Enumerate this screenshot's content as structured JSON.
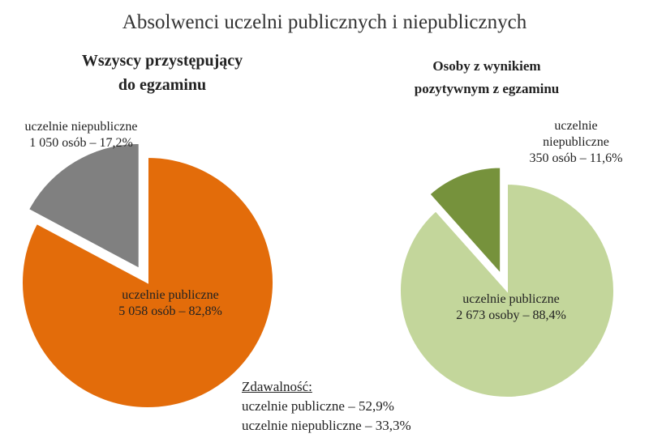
{
  "title": "Absolwenci uczelni publicznych i niepublicznych",
  "colors": {
    "public_all": "#E36C0A",
    "nonpublic_all": "#808080",
    "public_pass": "#C3D69B",
    "nonpublic_pass": "#76923C"
  },
  "chart_data": [
    {
      "type": "pie",
      "title_lines": [
        "Wszyscy przystępujący",
        "do egzaminu"
      ],
      "slices": [
        {
          "name": "uczelnie publiczne",
          "value": 5058,
          "percent": 82.8,
          "label_line1": "uczelnie publiczne",
          "label_line2": "5  058 osób – 82,8%",
          "exploded": false
        },
        {
          "name": "uczelnie niepubliczne",
          "value": 1050,
          "percent": 17.2,
          "label_line1": "uczelnie niepubliczne",
          "label_line2": "1 050 osób – 17,2%",
          "exploded": true
        }
      ]
    },
    {
      "type": "pie",
      "title_lines": [
        "Osoby z wynikiem",
        "pozytywnym z egzaminu"
      ],
      "slices": [
        {
          "name": "uczelnie publiczne",
          "value": 2673,
          "percent": 88.4,
          "label_line1": "uczelnie publiczne",
          "label_line2": "2 673 osoby – 88,4%",
          "exploded": false
        },
        {
          "name": "uczelnie niepubliczne",
          "value": 350,
          "percent": 11.6,
          "label_line1": "uczelnie",
          "label_line2": "niepubliczne",
          "label_line3": "350 osób – 11,6%",
          "exploded": true
        }
      ]
    }
  ],
  "pass_rate": {
    "heading": "Zdawalność:",
    "public": "uczelnie publiczne   – 52,9%",
    "nonpublic": "uczelnie niepubliczne – 33,3%"
  }
}
